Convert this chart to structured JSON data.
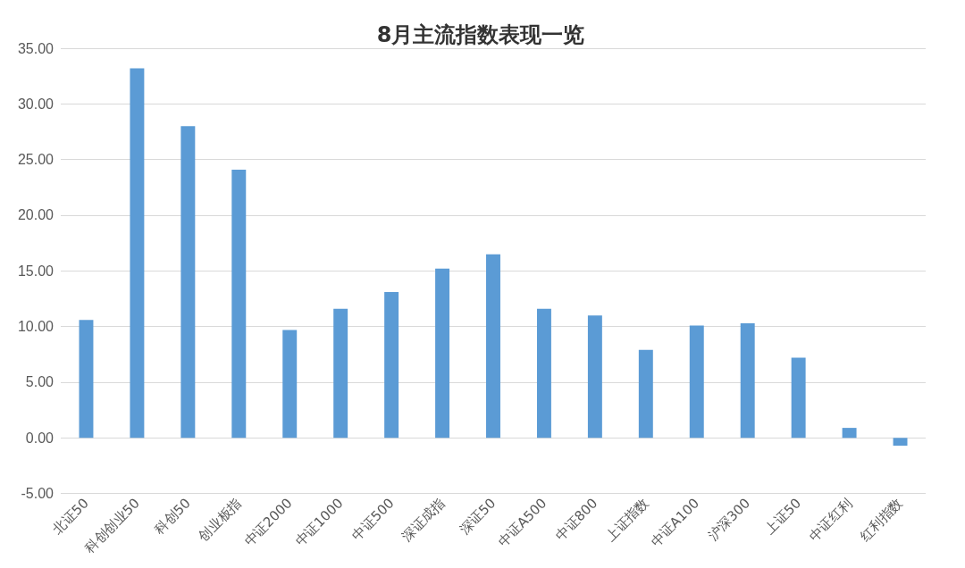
{
  "chart_data": {
    "type": "bar",
    "title": "8月主流指数表现一览",
    "categories": [
      "北证50",
      "科创创业50",
      "科创50",
      "创业板指",
      "中证2000",
      "中证1000",
      "中证500",
      "深证成指",
      "深证50",
      "中证A500",
      "中证800",
      "上证指数",
      "中证A100",
      "沪深300",
      "上证50",
      "中证红利",
      "红利指数"
    ],
    "values": [
      10.6,
      33.2,
      28.0,
      24.1,
      9.7,
      11.6,
      13.1,
      15.2,
      16.5,
      11.6,
      11.0,
      7.9,
      10.1,
      10.3,
      7.2,
      0.9,
      -0.7
    ],
    "color": "#5b9bd5",
    "ylim": [
      -5,
      35
    ],
    "yticks": [
      {
        "value": -5,
        "label": "-5.00"
      },
      {
        "value": 0,
        "label": "0.00"
      },
      {
        "value": 5,
        "label": "5.00"
      },
      {
        "value": 10,
        "label": "10.00"
      },
      {
        "value": 15,
        "label": "15.00"
      },
      {
        "value": 20,
        "label": "20.00"
      },
      {
        "value": 25,
        "label": "25.00"
      },
      {
        "value": 30,
        "label": "30.00"
      },
      {
        "value": 35,
        "label": "35.00"
      }
    ],
    "grid": "y"
  }
}
